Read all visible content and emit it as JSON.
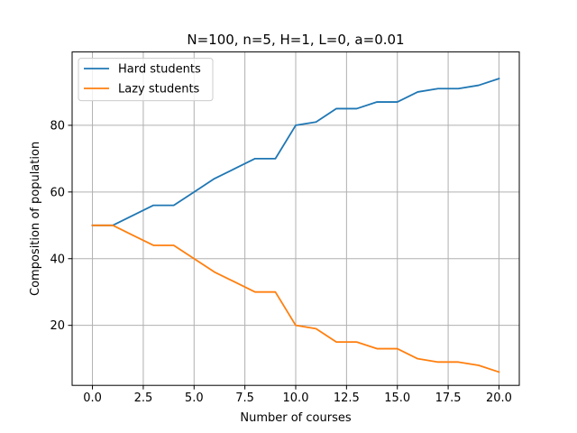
{
  "chart_data": {
    "type": "line",
    "title": "N=100, n=5, H=1, L=0, a=0.01",
    "xlabel": "Number of courses",
    "ylabel": "Composition of population",
    "xlim": [
      -1,
      21
    ],
    "ylim": [
      2,
      102
    ],
    "xticks": [
      0,
      2.5,
      5,
      7.5,
      10,
      12.5,
      15,
      17.5,
      20
    ],
    "xtick_labels": [
      "0.0",
      "2.5",
      "5.0",
      "7.5",
      "10.0",
      "12.5",
      "15.0",
      "17.5",
      "20.0"
    ],
    "yticks": [
      20,
      40,
      60,
      80
    ],
    "ytick_labels": [
      "20",
      "40",
      "60",
      "80"
    ],
    "grid": true,
    "legend": "upper-left",
    "x": [
      0,
      1,
      2,
      3,
      4,
      5,
      6,
      7,
      8,
      9,
      10,
      11,
      12,
      13,
      14,
      15,
      16,
      17,
      18,
      19,
      20
    ],
    "series": [
      {
        "name": "Hard students",
        "color": "#1f77b4",
        "values": [
          50,
          50,
          53,
          56,
          56,
          60,
          64,
          67,
          70,
          70,
          80,
          81,
          85,
          85,
          87,
          87,
          90,
          91,
          91,
          92,
          94
        ]
      },
      {
        "name": "Lazy students",
        "color": "#ff7f0e",
        "values": [
          50,
          50,
          47,
          44,
          44,
          40,
          36,
          33,
          30,
          30,
          20,
          19,
          15,
          15,
          13,
          13,
          10,
          9,
          9,
          8,
          6
        ]
      }
    ]
  }
}
